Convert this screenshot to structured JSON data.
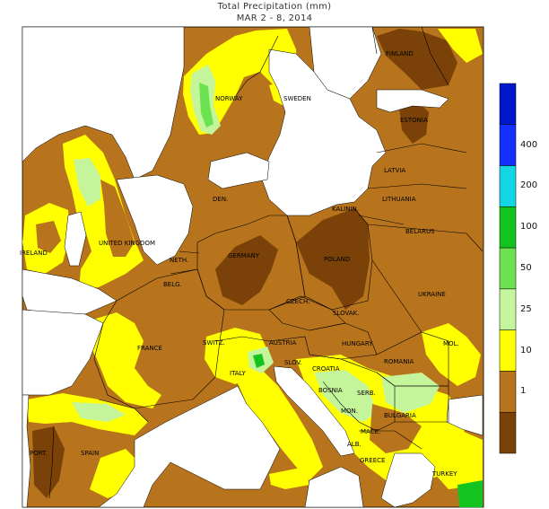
{
  "title_line1": "Total Precipitation (mm)",
  "title_line2": "MAR 2 - 8, 2014",
  "colors": {
    "dark_brown": "#7a4208",
    "brown": "#b8741c",
    "yellow": "#ffff00",
    "light_green": "#c4f59a",
    "green": "#6de250",
    "bright_green": "#14c41e",
    "cyan": "#12d6e6",
    "blue": "#1430ff",
    "dark_blue": "#0018cc",
    "water": "#ffffff"
  },
  "legend": {
    "bins": [
      {
        "label": "",
        "color": "#0018cc"
      },
      {
        "label": "400",
        "color": "#1430ff"
      },
      {
        "label": "200",
        "color": "#12d6e6"
      },
      {
        "label": "100",
        "color": "#14c41e"
      },
      {
        "label": "50",
        "color": "#6de250"
      },
      {
        "label": "25",
        "color": "#c4f59a"
      },
      {
        "label": "10",
        "color": "#ffff00"
      },
      {
        "label": "1",
        "color": "#b8741c"
      },
      {
        "label": "",
        "color": "#7a4208"
      }
    ]
  },
  "countries": [
    "FINLAND",
    "NORWAY",
    "SWEDEN",
    "ESTONIA",
    "LATVIA",
    "LITHUANIA",
    "KALININ.",
    "BELARUS",
    "DEN.",
    "UNITED KINGDOM",
    "IRELAND",
    "NETH.",
    "BELG.",
    "GERMANY",
    "POLAND",
    "CZECH.",
    "SLOVAK.",
    "UKRAINE",
    "FRANCE",
    "SWITZ.",
    "AUSTRIA",
    "HUNGARY",
    "MOL.",
    "ROMANIA",
    "SLOV.",
    "CROATIA",
    "BOSNIA",
    "SERB.",
    "ITALY",
    "MON.",
    "BULGARIA",
    "MACE.",
    "ALB.",
    "GREECE",
    "TURKEY",
    "PORT.",
    "SPAIN"
  ]
}
